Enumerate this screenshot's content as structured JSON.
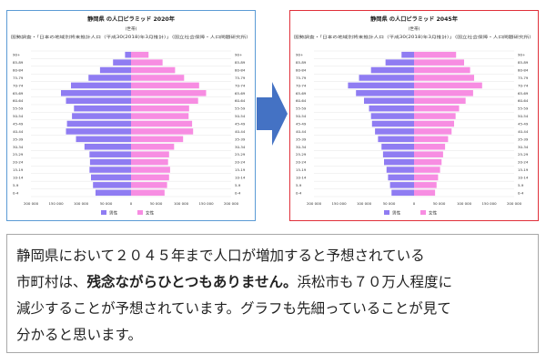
{
  "colors": {
    "male": "#8f7cf2",
    "female": "#f78de2",
    "left_border": "#5b9bd5",
    "right_border": "#e0303a",
    "arrow": "#4472c4"
  },
  "legend": {
    "male": "男性",
    "female": "女性"
  },
  "chart_data": [
    {
      "type": "bar",
      "orientation": "population-pyramid",
      "title": "静岡県 の人口ピラミッド 2020年",
      "unit_label": "(世帯)",
      "source": "国勢調査・「日本の地域別将来推計人口（平成30(2018)年3月推計）」（国立社会保障・人口問題研究所）",
      "categories": [
        "0-4",
        "5-9",
        "10-14",
        "15-19",
        "20-24",
        "25-29",
        "30-34",
        "35-39",
        "40-44",
        "45-49",
        "50-54",
        "55-59",
        "60-64",
        "65-69",
        "70-74",
        "75-79",
        "80-84",
        "85-89",
        "90+"
      ],
      "x_ticks": [
        "200 000",
        "150 000",
        "100 000",
        "50 000",
        "0",
        "50 000",
        "100 000",
        "150 000",
        "200 000"
      ],
      "xlim": [
        -200000,
        200000
      ],
      "series": [
        {
          "name": "男性",
          "values": [
            71000,
            76000,
            80000,
            83000,
            82000,
            83000,
            93000,
            110000,
            130000,
            128000,
            118000,
            114000,
            130000,
            140000,
            120000,
            85000,
            62000,
            36000,
            12000
          ]
        },
        {
          "name": "女性",
          "values": [
            67000,
            72000,
            76000,
            78000,
            74000,
            76000,
            86000,
            104000,
            124000,
            122000,
            115000,
            116000,
            134000,
            150000,
            136000,
            106000,
            88000,
            63000,
            35000
          ]
        }
      ]
    },
    {
      "type": "bar",
      "orientation": "population-pyramid",
      "title": "静岡県 の人口ピラミッド 2045年",
      "unit_label": "(世帯)",
      "source": "国勢調査・「日本の地域別将来推計人口（平成30(2018)年3月推計）」（国立社会保障・人口問題研究所）",
      "categories": [
        "0-4",
        "5-9",
        "10-14",
        "15-19",
        "20-24",
        "25-29",
        "30-34",
        "35-39",
        "40-44",
        "45-49",
        "50-54",
        "55-59",
        "60-64",
        "65-69",
        "70-74",
        "75-79",
        "80-84",
        "85-89",
        "90+"
      ],
      "x_ticks": [
        "200 000",
        "150 000",
        "100 000",
        "50 000",
        "0",
        "50 000",
        "100 000",
        "150 000",
        "200 000"
      ],
      "xlim": [
        -200000,
        200000
      ],
      "series": [
        {
          "name": "男性",
          "values": [
            45000,
            48000,
            52000,
            55000,
            60000,
            62000,
            65000,
            72000,
            78000,
            84000,
            86000,
            90000,
            100000,
            116000,
            132000,
            110000,
            86000,
            57000,
            25000
          ]
        },
        {
          "name": "女性",
          "values": [
            42000,
            45000,
            48000,
            52000,
            55000,
            58000,
            62000,
            68000,
            75000,
            80000,
            83000,
            90000,
            103000,
            118000,
            136000,
            120000,
            112000,
            100000,
            84000
          ]
        }
      ]
    }
  ],
  "text": {
    "line1": "静岡県において２０４５年まで人口が増加すると予想されている",
    "line2_a": "市町村は、",
    "line2_b": "残念ながらひとつもありません。",
    "line2_c": "浜松市も７０万人程度に",
    "line3": "減少することが予想されています。グラフも先細っていることが見て",
    "line4": "分かると思います。"
  }
}
